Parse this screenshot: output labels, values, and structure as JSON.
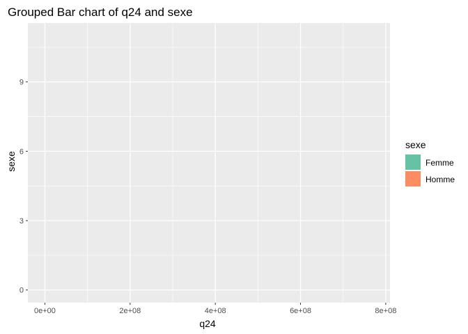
{
  "chart_data": {
    "type": "bar",
    "title": "Grouped Bar chart of q24 and sexe",
    "xlabel": "q24",
    "ylabel": "sexe",
    "x_ticks": [
      0,
      200000000,
      400000000,
      600000000,
      800000000
    ],
    "x_tick_labels": [
      "0e+00",
      "2e+08",
      "4e+08",
      "6e+08",
      "8e+08"
    ],
    "y_ticks": [
      0,
      3,
      6,
      9
    ],
    "y_tick_labels": [
      "0",
      "3",
      "6",
      "9"
    ],
    "xlim": [
      -40000000,
      810000000
    ],
    "ylim": [
      -0.55,
      11.55
    ],
    "grid": true,
    "series": [
      {
        "name": "Femme",
        "color": "#66c2a5",
        "values": []
      },
      {
        "name": "Homme",
        "color": "#fc8d62",
        "values": []
      }
    ],
    "legend": {
      "title": "sexe",
      "position": "right",
      "entries": [
        "Femme",
        "Homme"
      ]
    },
    "panel_background": "#ebebeb",
    "grid_color": "#ffffff"
  }
}
